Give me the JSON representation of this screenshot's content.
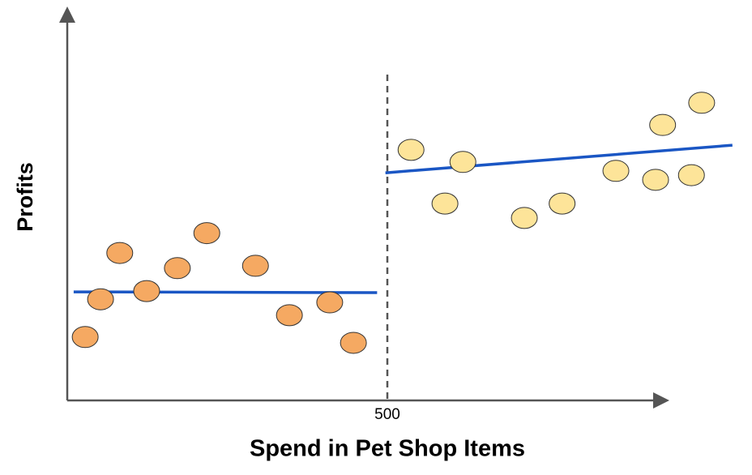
{
  "chart_data": {
    "type": "scatter",
    "x_label": "Spend in Pet Shop Items",
    "y_label": "Profits",
    "xlim": [
      0,
      1040
    ],
    "ylim": [
      0,
      100
    ],
    "xticks": [
      500
    ],
    "series": [
      {
        "color": "#f5a962",
        "x": [
          28,
          52,
          82,
          124,
          172,
          218,
          294,
          347,
          410,
          447
        ],
        "values": [
          16.3,
          26,
          37.9,
          28.1,
          34,
          43,
          34.6,
          21.9,
          25.2,
          14.8
        ]
      },
      {
        "color": "#fde499",
        "x": [
          537,
          590,
          618,
          714,
          773,
          857,
          919,
          930,
          975,
          991
        ],
        "values": [
          64.4,
          50.6,
          61.3,
          46.9,
          50.6,
          59,
          56.7,
          70.8,
          57.9,
          76.5
        ]
      }
    ],
    "fit_lines": [
      {
        "color": "#1a56c4",
        "x": [
          10,
          484
        ],
        "values": [
          27.9,
          27.7
        ]
      },
      {
        "color": "#1a56c4",
        "x": [
          497,
          1039
        ],
        "values": [
          58.5,
          65.6
        ]
      }
    ]
  }
}
